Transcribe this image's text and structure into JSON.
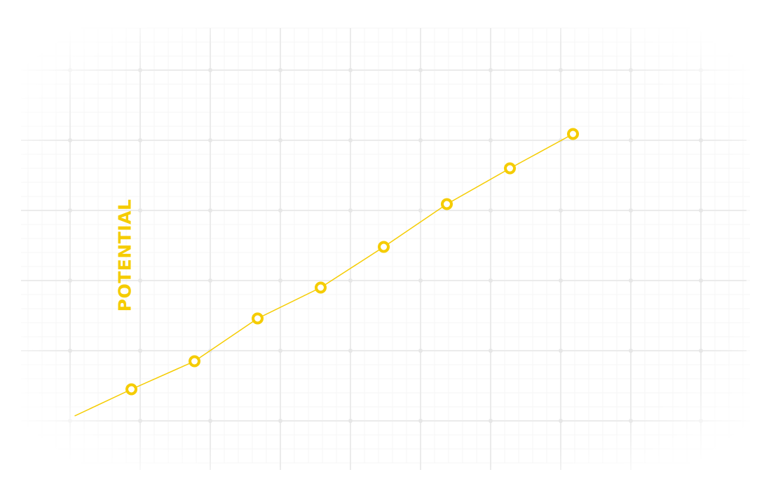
{
  "chart_data": {
    "type": "line",
    "ylabel": "POTENTIAL",
    "xlabel": "",
    "title": "",
    "grid": true,
    "x": [
      1,
      2,
      3,
      4,
      5,
      6,
      7,
      8
    ],
    "series": [
      {
        "values": [
          0.45,
          0.85,
          1.46,
          1.9,
          2.48,
          3.09,
          3.6,
          4.09
        ]
      }
    ],
    "line_start": {
      "x": 0.1,
      "y": 0.07
    },
    "xlim": [
      -0.25,
      9.75
    ],
    "ylim": [
      0.0,
      5.0
    ]
  },
  "colors": {
    "accent": "#F5CC00",
    "grid_major": "#EBEBEB",
    "grid_minor": "#F5F5F5",
    "background": "#FFFFFF"
  }
}
